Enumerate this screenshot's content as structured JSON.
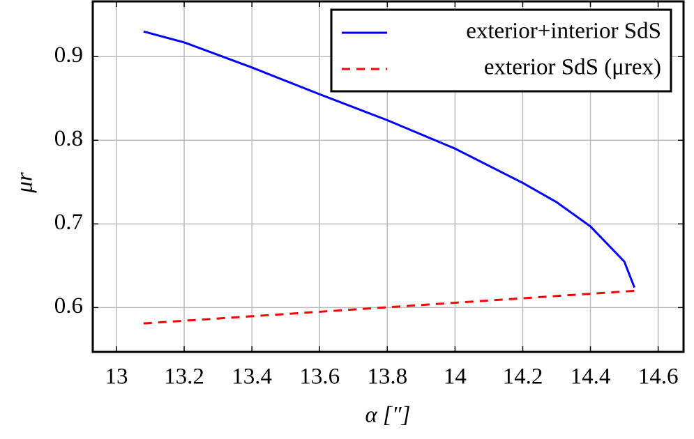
{
  "chart_data": {
    "type": "line",
    "x_label": "α [″]",
    "y_label": "μr",
    "xlim": [
      12.93,
      14.675
    ],
    "ylim": [
      0.547,
      0.966
    ],
    "xticks": [
      13,
      13.2,
      13.4,
      13.6,
      13.8,
      14,
      14.2,
      14.4,
      14.6
    ],
    "yticks": [
      0.6,
      0.7,
      0.8,
      0.9
    ],
    "grid": true,
    "legend": "upper right",
    "series": [
      {
        "name": "exterior+interior SdS",
        "color": "#0000ff",
        "dashed": false,
        "x": [
          13.08,
          13.2,
          13.4,
          13.6,
          13.8,
          14.0,
          14.2,
          14.3,
          14.4,
          14.5,
          14.53
        ],
        "values": [
          0.93,
          0.917,
          0.887,
          0.855,
          0.824,
          0.79,
          0.749,
          0.726,
          0.697,
          0.655,
          0.624
        ]
      },
      {
        "name": "exterior SdS (μrex)",
        "color": "#ff0000",
        "dashed": true,
        "x": [
          13.08,
          14.53
        ],
        "values": [
          0.581,
          0.62
        ]
      }
    ]
  }
}
